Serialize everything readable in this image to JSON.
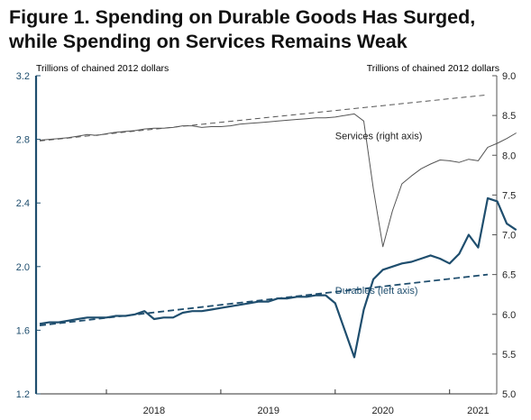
{
  "title": {
    "line1": "Figure 1. Spending on Durable Goods Has Surged,",
    "line2": "while Spending on Services Remains Weak"
  },
  "colors": {
    "durables": "#1f4e6e",
    "services": "#555555",
    "left_axis_text": "#1f4e6e",
    "right_axis_text": "#222222",
    "axis_line": "#1f4e6e"
  },
  "chart_data": {
    "type": "line",
    "left_axis": {
      "label": "Trillions of chained 2012 dollars",
      "range": [
        1.2,
        3.2
      ],
      "ticks": [
        "1.2",
        "1.6",
        "2.0",
        "2.4",
        "2.8",
        "3.2"
      ]
    },
    "right_axis": {
      "label": "Trillions of chained 2012 dollars",
      "range": [
        5.0,
        9.0
      ],
      "ticks": [
        "5.0",
        "5.5",
        "6.0",
        "6.5",
        "7.0",
        "7.5",
        "8.0",
        "8.5",
        "9.0"
      ]
    },
    "x_axis": {
      "start": "2017-06",
      "end": "2021-05",
      "tick_labels": [
        {
          "label": "2018",
          "month": "2018-06"
        },
        {
          "label": "2019",
          "month": "2019-06"
        },
        {
          "label": "2020",
          "month": "2020-06"
        },
        {
          "label": "2021",
          "month": "2021-04"
        }
      ]
    },
    "grid": false,
    "series": [
      {
        "name": "Services (right axis)",
        "axis": "right",
        "style": "solid",
        "start": "2017-06",
        "values": [
          8.19,
          8.2,
          8.21,
          8.22,
          8.24,
          8.26,
          8.25,
          8.27,
          8.29,
          8.3,
          8.31,
          8.33,
          8.34,
          8.34,
          8.35,
          8.37,
          8.37,
          8.35,
          8.36,
          8.36,
          8.37,
          8.39,
          8.4,
          8.41,
          8.42,
          8.43,
          8.44,
          8.45,
          8.46,
          8.47,
          8.47,
          8.48,
          8.5,
          8.52,
          8.43,
          7.58,
          6.85,
          7.3,
          7.64,
          7.74,
          7.83,
          7.89,
          7.94,
          7.93,
          7.91,
          7.95,
          7.93,
          8.1,
          8.15,
          8.21,
          8.28
        ]
      },
      {
        "name": "Services trend",
        "axis": "right",
        "style": "dashed",
        "start": "2017-06",
        "values": [
          8.18,
          8.76
        ],
        "end": "2021-05"
      },
      {
        "name": "Durables (left axis)",
        "axis": "left",
        "style": "solid",
        "start": "2017-06",
        "values": [
          1.64,
          1.65,
          1.65,
          1.66,
          1.67,
          1.68,
          1.68,
          1.68,
          1.69,
          1.69,
          1.7,
          1.72,
          1.67,
          1.68,
          1.68,
          1.71,
          1.72,
          1.72,
          1.73,
          1.74,
          1.75,
          1.76,
          1.77,
          1.78,
          1.78,
          1.8,
          1.8,
          1.81,
          1.81,
          1.82,
          1.82,
          1.77,
          1.6,
          1.43,
          1.73,
          1.92,
          1.98,
          2.0,
          2.02,
          2.03,
          2.05,
          2.07,
          2.05,
          2.02,
          2.08,
          2.2,
          2.12,
          2.43,
          2.41,
          2.27,
          2.23
        ]
      },
      {
        "name": "Durables trend",
        "axis": "left",
        "style": "dashed",
        "start": "2017-06",
        "values": [
          1.63,
          1.95
        ],
        "end": "2021-05"
      }
    ],
    "annotations": [
      {
        "text": "Services (right axis)",
        "month": "2020-01",
        "value_right": 8.2
      },
      {
        "text": "Durables (left axis)",
        "month": "2020-01",
        "value_left": 1.83
      }
    ]
  }
}
